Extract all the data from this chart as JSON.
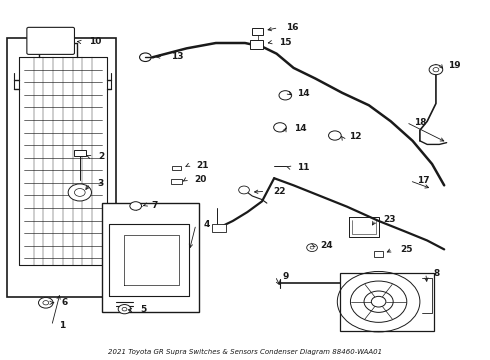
{
  "title": "2021 Toyota GR Supra Switches & Sensors Condenser Diagram 88460-WAA01",
  "bg_color": "#ffffff",
  "line_color": "#1a1a1a",
  "text_color": "#1a1a1a",
  "figsize": [
    4.9,
    3.6
  ],
  "dpi": 100
}
